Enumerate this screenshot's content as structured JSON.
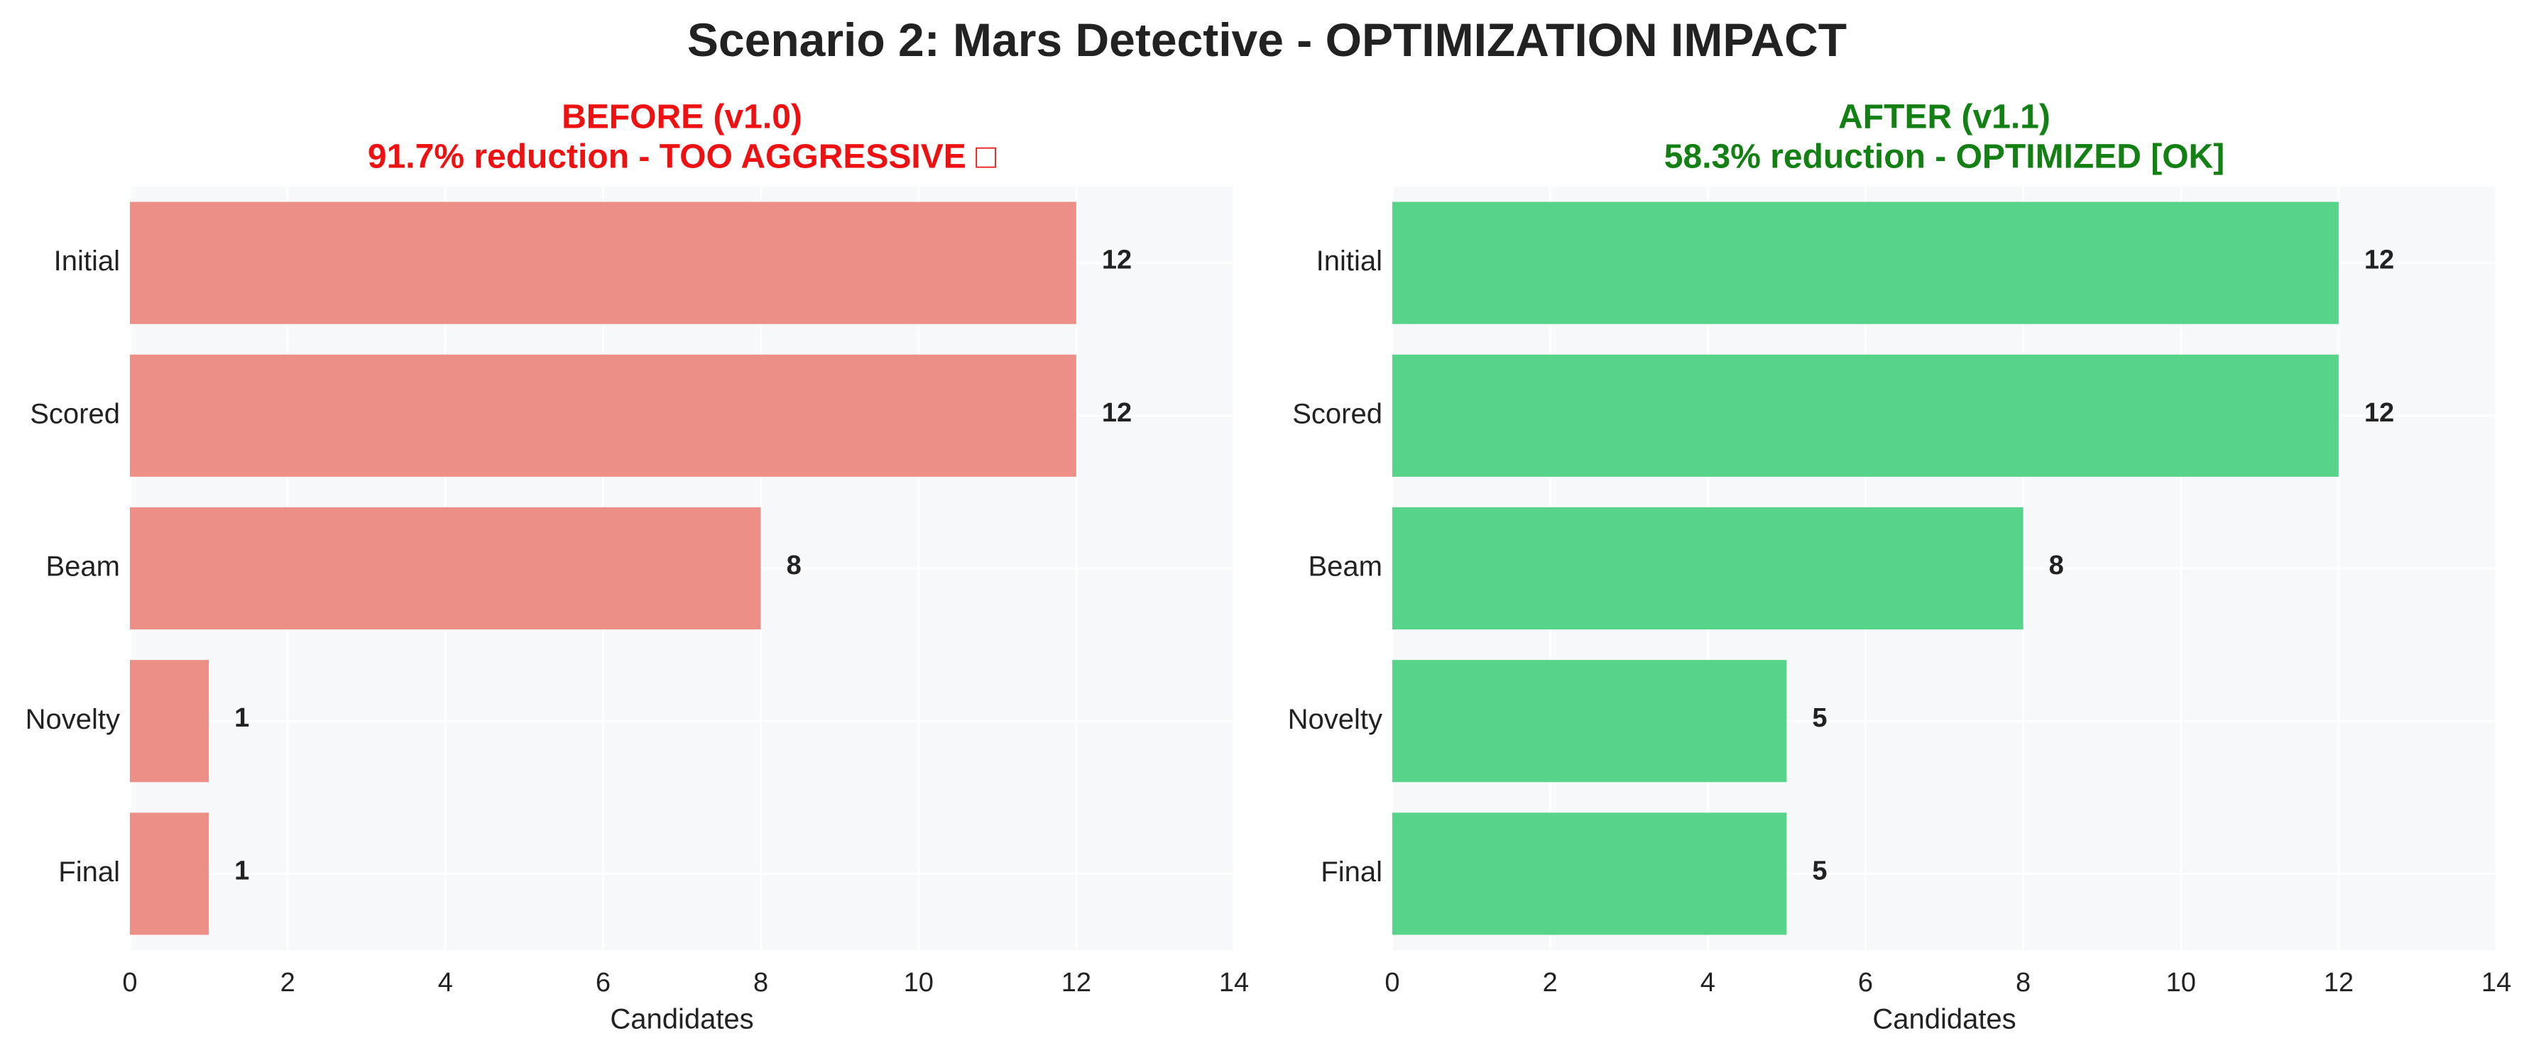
{
  "figure_title": "Scenario 2: Mars Detective - OPTIMIZATION IMPACT",
  "colors": {
    "plot_background": "#f7f8fa",
    "grid": "#ffffff",
    "tick_text": "#222222"
  },
  "chart_data": [
    {
      "type": "bar",
      "orientation": "horizontal",
      "title_line1": "BEFORE (v1.0)",
      "title_line2": "91.7% reduction - TOO AGGRESSIVE □",
      "title_color": "#ee1111",
      "bar_color": "#ec8f86",
      "categories": [
        "Initial",
        "Scored",
        "Beam",
        "Novelty",
        "Final"
      ],
      "values": [
        12,
        12,
        8,
        1,
        1
      ],
      "xlabel": "Candidates",
      "ylabel": "",
      "xlim": [
        0,
        14
      ],
      "xticks": [
        0,
        2,
        4,
        6,
        8,
        10,
        12,
        14
      ],
      "grid": true,
      "data_labels": true
    },
    {
      "type": "bar",
      "orientation": "horizontal",
      "title_line1": "AFTER (v1.1)",
      "title_line2": "58.3% reduction - OPTIMIZED [OK]",
      "title_color": "#128012",
      "bar_color": "#57d48a",
      "categories": [
        "Initial",
        "Scored",
        "Beam",
        "Novelty",
        "Final"
      ],
      "values": [
        12,
        12,
        8,
        5,
        5
      ],
      "xlabel": "Candidates",
      "ylabel": "",
      "xlim": [
        0,
        14
      ],
      "xticks": [
        0,
        2,
        4,
        6,
        8,
        10,
        12,
        14
      ],
      "grid": true,
      "data_labels": true
    }
  ]
}
